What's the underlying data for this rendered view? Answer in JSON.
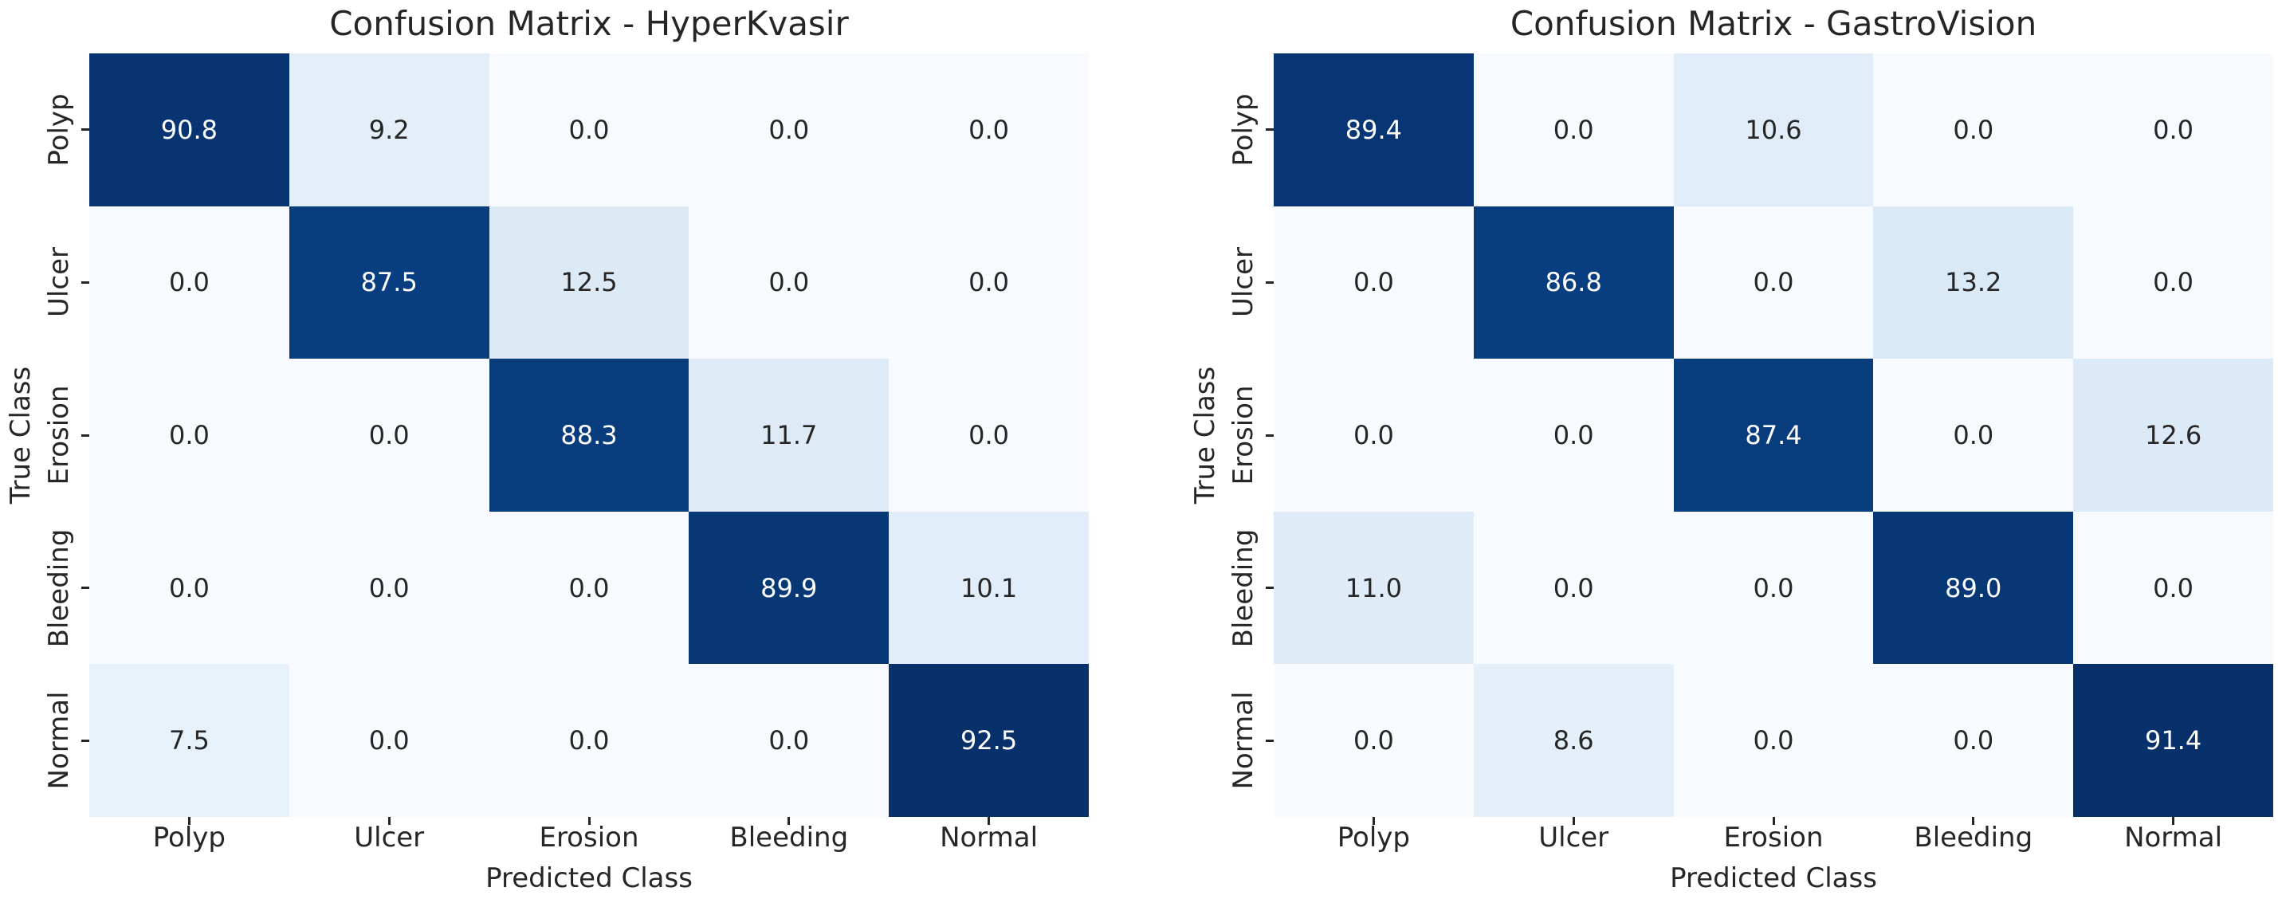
{
  "figure": {
    "background": "#ffffff",
    "text_color": "#262626"
  },
  "colors": {
    "blues_scale": [
      "#f7fbff",
      "#deebf7",
      "#c6dbef",
      "#9ecae1",
      "#6baed6",
      "#4292c6",
      "#2171b5",
      "#08519c",
      "#08306b"
    ],
    "annotation_on_light": "#262626",
    "annotation_on_dark": "#ffffff",
    "tick_color": "#262626"
  },
  "chart_data": [
    {
      "type": "heatmap",
      "title": "Confusion Matrix - HyperKvasir",
      "xlabel": "Predicted Class",
      "ylabel": "True Class",
      "x_categories": [
        "Polyp",
        "Ulcer",
        "Erosion",
        "Bleeding",
        "Normal"
      ],
      "y_categories": [
        "Polyp",
        "Ulcer",
        "Erosion",
        "Bleeding",
        "Normal"
      ],
      "values": [
        [
          90.8,
          9.2,
          0.0,
          0.0,
          0.0
        ],
        [
          0.0,
          87.5,
          12.5,
          0.0,
          0.0
        ],
        [
          0.0,
          0.0,
          88.3,
          11.7,
          0.0
        ],
        [
          0.0,
          0.0,
          0.0,
          89.9,
          10.1
        ],
        [
          7.5,
          0.0,
          0.0,
          0.0,
          92.5
        ]
      ],
      "colormap": "Blues",
      "vmin": 0,
      "vmax": 92.5,
      "value_format": "1-decimal",
      "grid": false,
      "legend": "none"
    },
    {
      "type": "heatmap",
      "title": "Confusion Matrix - GastroVision",
      "xlabel": "Predicted Class",
      "ylabel": "True Class",
      "x_categories": [
        "Polyp",
        "Ulcer",
        "Erosion",
        "Bleeding",
        "Normal"
      ],
      "y_categories": [
        "Polyp",
        "Ulcer",
        "Erosion",
        "Bleeding",
        "Normal"
      ],
      "values": [
        [
          89.4,
          0.0,
          10.6,
          0.0,
          0.0
        ],
        [
          0.0,
          86.8,
          0.0,
          13.2,
          0.0
        ],
        [
          0.0,
          0.0,
          87.4,
          0.0,
          12.6
        ],
        [
          11.0,
          0.0,
          0.0,
          89.0,
          0.0
        ],
        [
          0.0,
          8.6,
          0.0,
          0.0,
          91.4
        ]
      ],
      "colormap": "Blues",
      "vmin": 0,
      "vmax": 91.4,
      "value_format": "1-decimal",
      "grid": false,
      "legend": "none"
    }
  ]
}
